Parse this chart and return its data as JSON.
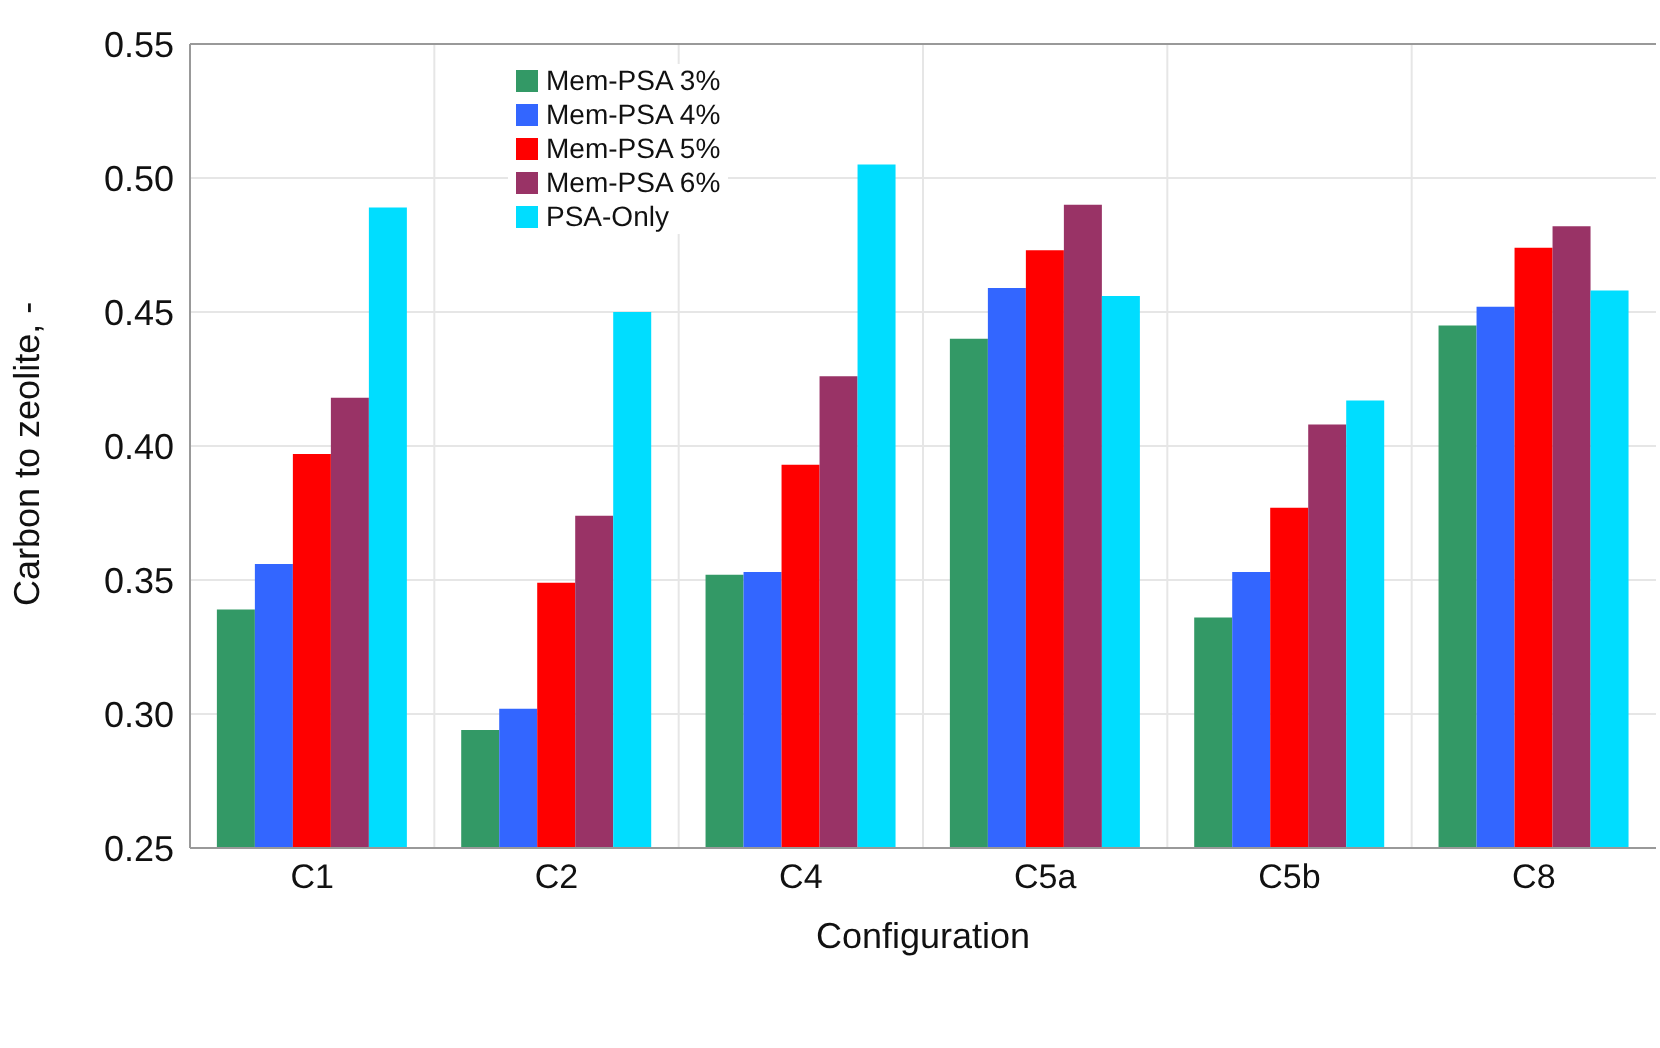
{
  "chart_data": {
    "type": "bar",
    "xlabel": "Configuration",
    "ylabel": "Carbon to zeolite, -",
    "categories": [
      "C1",
      "C2",
      "C4",
      "C5a",
      "C5b",
      "C8"
    ],
    "series": [
      {
        "name": "Mem-PSA 3%",
        "color": "#339966",
        "values": [
          0.339,
          0.294,
          0.352,
          0.44,
          0.336,
          0.445
        ]
      },
      {
        "name": "Mem-PSA 4%",
        "color": "#3366ff",
        "values": [
          0.356,
          0.302,
          0.353,
          0.459,
          0.353,
          0.452
        ]
      },
      {
        "name": "Mem-PSA 5%",
        "color": "#ff0000",
        "values": [
          0.397,
          0.349,
          0.393,
          0.473,
          0.377,
          0.474
        ]
      },
      {
        "name": "Mem-PSA 6%",
        "color": "#993366",
        "values": [
          0.418,
          0.374,
          0.426,
          0.49,
          0.408,
          0.482
        ]
      },
      {
        "name": "PSA-Only",
        "color": "#00ddff",
        "values": [
          0.489,
          0.45,
          0.505,
          0.456,
          0.417,
          0.458
        ]
      }
    ],
    "ylim": [
      0.25,
      0.55
    ],
    "yticks": [
      0.25,
      {
        "value": 0.3,
        "label": "0.30"
      },
      0.35,
      {
        "value": 0.4,
        "label": "0.40"
      },
      0.45,
      {
        "value": 0.5,
        "label": "0.50"
      },
      0.55
    ],
    "grid": true,
    "legend": "top left"
  }
}
